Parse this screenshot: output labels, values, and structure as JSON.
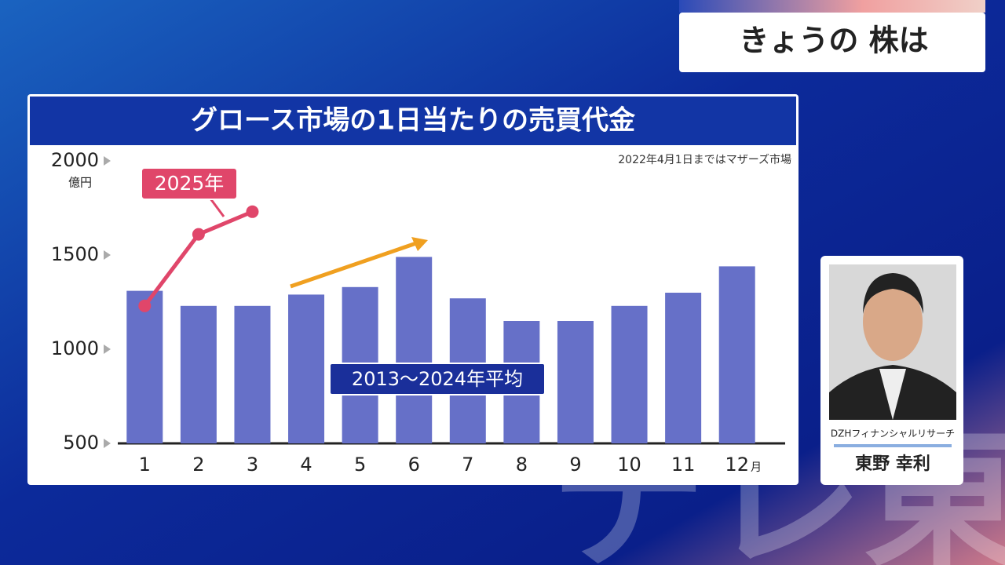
{
  "header": {
    "title": "きょうの 株は"
  },
  "guest": {
    "company": "DZHフィナンシャルリサーチ",
    "name": "東野 幸利"
  },
  "watermark": "テレ東",
  "chart_data": {
    "type": "bar",
    "title": "グロース市場の1日当たりの売買代金",
    "note": "2022年4月1日まではマザーズ市場",
    "y_unit": "億円",
    "x_unit": "月",
    "categories": [
      "1",
      "2",
      "3",
      "4",
      "5",
      "6",
      "7",
      "8",
      "9",
      "10",
      "11",
      "12"
    ],
    "series": [
      {
        "name": "2013〜2024年平均",
        "type": "bar",
        "color": "#6670c8",
        "values": [
          1310,
          1230,
          1230,
          1290,
          1330,
          1490,
          1270,
          1150,
          1150,
          1230,
          1300,
          1440
        ]
      },
      {
        "name": "2025年",
        "type": "line",
        "color": "#e0466a",
        "values": [
          1230,
          1610,
          1730,
          null,
          null,
          null,
          null,
          null,
          null,
          null,
          null,
          null
        ]
      }
    ],
    "ylim": [
      500,
      2000
    ],
    "yticks": [
      500,
      1000,
      1500,
      2000
    ]
  }
}
